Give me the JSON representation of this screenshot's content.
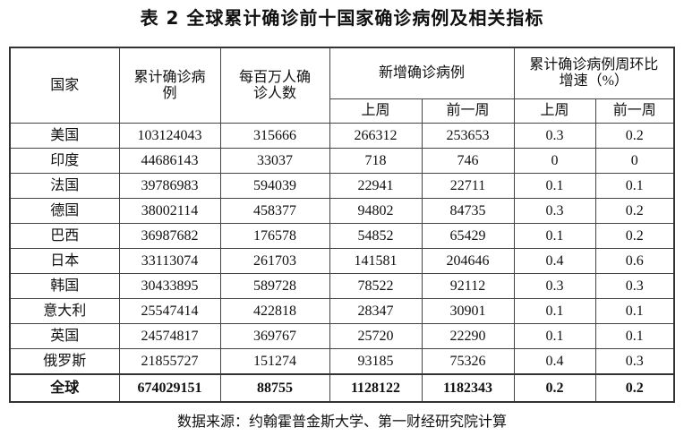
{
  "title": "表 2  全球累计确诊前十国家确诊病例及相关指标",
  "headers": {
    "country": "国家",
    "cumulative": "累计确诊病例",
    "per_million": "每百万人确诊人数",
    "new_cases": "新增确诊病例",
    "growth": "累计确诊病例周环比增速（%）",
    "last_week": "上周",
    "prev_week": "前一周"
  },
  "rows": [
    {
      "country": "美国",
      "cumulative": "103124043",
      "per_million": "315666",
      "new_last": "266312",
      "new_prev": "253653",
      "growth_last": "0.3",
      "growth_prev": "0.2"
    },
    {
      "country": "印度",
      "cumulative": "44686143",
      "per_million": "33037",
      "new_last": "718",
      "new_prev": "746",
      "growth_last": "0",
      "growth_prev": "0"
    },
    {
      "country": "法国",
      "cumulative": "39786983",
      "per_million": "594039",
      "new_last": "22941",
      "new_prev": "22711",
      "growth_last": "0.1",
      "growth_prev": "0.1"
    },
    {
      "country": "德国",
      "cumulative": "38002114",
      "per_million": "458377",
      "new_last": "94802",
      "new_prev": "84735",
      "growth_last": "0.3",
      "growth_prev": "0.2"
    },
    {
      "country": "巴西",
      "cumulative": "36987682",
      "per_million": "176578",
      "new_last": "54852",
      "new_prev": "65429",
      "growth_last": "0.1",
      "growth_prev": "0.2"
    },
    {
      "country": "日本",
      "cumulative": "33113074",
      "per_million": "261703",
      "new_last": "141581",
      "new_prev": "204646",
      "growth_last": "0.4",
      "growth_prev": "0.6"
    },
    {
      "country": "韩国",
      "cumulative": "30433895",
      "per_million": "589728",
      "new_last": "78522",
      "new_prev": "92112",
      "growth_last": "0.3",
      "growth_prev": "0.3"
    },
    {
      "country": "意大利",
      "cumulative": "25547414",
      "per_million": "422818",
      "new_last": "28347",
      "new_prev": "30901",
      "growth_last": "0.1",
      "growth_prev": "0.1"
    },
    {
      "country": "英国",
      "cumulative": "24574817",
      "per_million": "369767",
      "new_last": "25720",
      "new_prev": "22290",
      "growth_last": "0.1",
      "growth_prev": "0.1"
    },
    {
      "country": "俄罗斯",
      "cumulative": "21855727",
      "per_million": "151274",
      "new_last": "93185",
      "new_prev": "75326",
      "growth_last": "0.4",
      "growth_prev": "0.3"
    }
  ],
  "total": {
    "country": "全球",
    "cumulative": "674029151",
    "per_million": "88755",
    "new_last": "1128122",
    "new_prev": "1182343",
    "growth_last": "0.2",
    "growth_prev": "0.2"
  },
  "source": "数据来源：约翰霍普金斯大学、第一财经研究院计算"
}
